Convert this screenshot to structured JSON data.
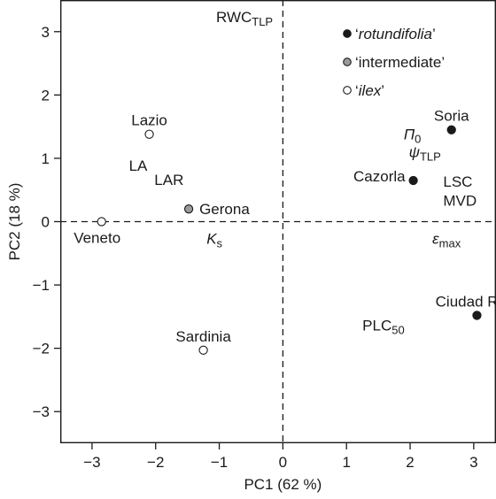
{
  "chart_data": {
    "type": "scatter",
    "xlabel": "PC1 (62 %)",
    "ylabel": "PC2 (18 %)",
    "xlim": [
      -3.5,
      3.35
    ],
    "ylim": [
      -3.5,
      3.5
    ],
    "x_ticks": [
      -3,
      -2,
      -1,
      0,
      1,
      2,
      3
    ],
    "y_ticks": [
      -3,
      -2,
      -1,
      0,
      1,
      2,
      3
    ],
    "x_tick_labels": [
      "−3",
      "−2",
      "−1",
      "0",
      "1",
      "2",
      "3"
    ],
    "y_tick_labels": [
      "−3",
      "−2",
      "−1",
      "0",
      "1",
      "2",
      "3"
    ],
    "reference_lines": {
      "x": 0,
      "y": 0,
      "style": "dashed"
    },
    "legend": {
      "position": "top-right",
      "entries": [
        {
          "label": "rotundifolia",
          "fill": "#1a1a1a"
        },
        {
          "label": "intermediate",
          "fill": "#9a9a9a"
        },
        {
          "label": "ilex",
          "fill": "#ffffff"
        }
      ]
    },
    "points": [
      {
        "name": "Lazio",
        "x": -2.1,
        "y": 1.38,
        "group": "ilex",
        "fill": "#ffffff",
        "label_pos": "above"
      },
      {
        "name": "Veneto",
        "x": -2.85,
        "y": 0.0,
        "group": "ilex",
        "fill": "#ffffff",
        "label_pos": "below"
      },
      {
        "name": "Gerona",
        "x": -1.48,
        "y": 0.2,
        "group": "intermediate",
        "fill": "#9a9a9a",
        "label_pos": "right"
      },
      {
        "name": "Sardinia",
        "x": -1.25,
        "y": -2.03,
        "group": "ilex",
        "fill": "#ffffff",
        "label_pos": "above"
      },
      {
        "name": "Soria",
        "x": 2.65,
        "y": 1.45,
        "group": "rotundifolia",
        "fill": "#1a1a1a",
        "label_pos": "above"
      },
      {
        "name": "Cazorla",
        "x": 2.05,
        "y": 0.65,
        "group": "rotundifolia",
        "fill": "#1a1a1a",
        "label_pos": "left"
      },
      {
        "name": "Ciudad Real",
        "x": 3.05,
        "y": -1.48,
        "group": "rotundifolia",
        "fill": "#1a1a1a",
        "label_pos": "above"
      }
    ],
    "variables": [
      {
        "label": "RWC",
        "sub": "TLP",
        "x": -1.05,
        "y": 3.15,
        "italic": false
      },
      {
        "label": "LA",
        "sub": "",
        "x": -2.42,
        "y": 0.8,
        "italic": false
      },
      {
        "label": "LAR",
        "sub": "",
        "x": -2.02,
        "y": 0.58,
        "italic": false
      },
      {
        "label": "K",
        "sub": "s",
        "x": -1.2,
        "y": -0.35,
        "italic": true
      },
      {
        "label": "Π",
        "sub": "0",
        "x": 1.9,
        "y": 1.3,
        "italic": true
      },
      {
        "label": "ψ",
        "sub": "TLP",
        "x": 1.98,
        "y": 1.02,
        "italic": true
      },
      {
        "label": "LSC",
        "sub": "",
        "x": 2.52,
        "y": 0.55,
        "italic": false
      },
      {
        "label": "MVD",
        "sub": "",
        "x": 2.52,
        "y": 0.25,
        "italic": false
      },
      {
        "label": "ε",
        "sub": "max",
        "x": 2.35,
        "y": -0.35,
        "italic": true
      },
      {
        "label": "PLC",
        "sub": "50",
        "x": 1.25,
        "y": -1.72,
        "italic": false
      }
    ]
  }
}
